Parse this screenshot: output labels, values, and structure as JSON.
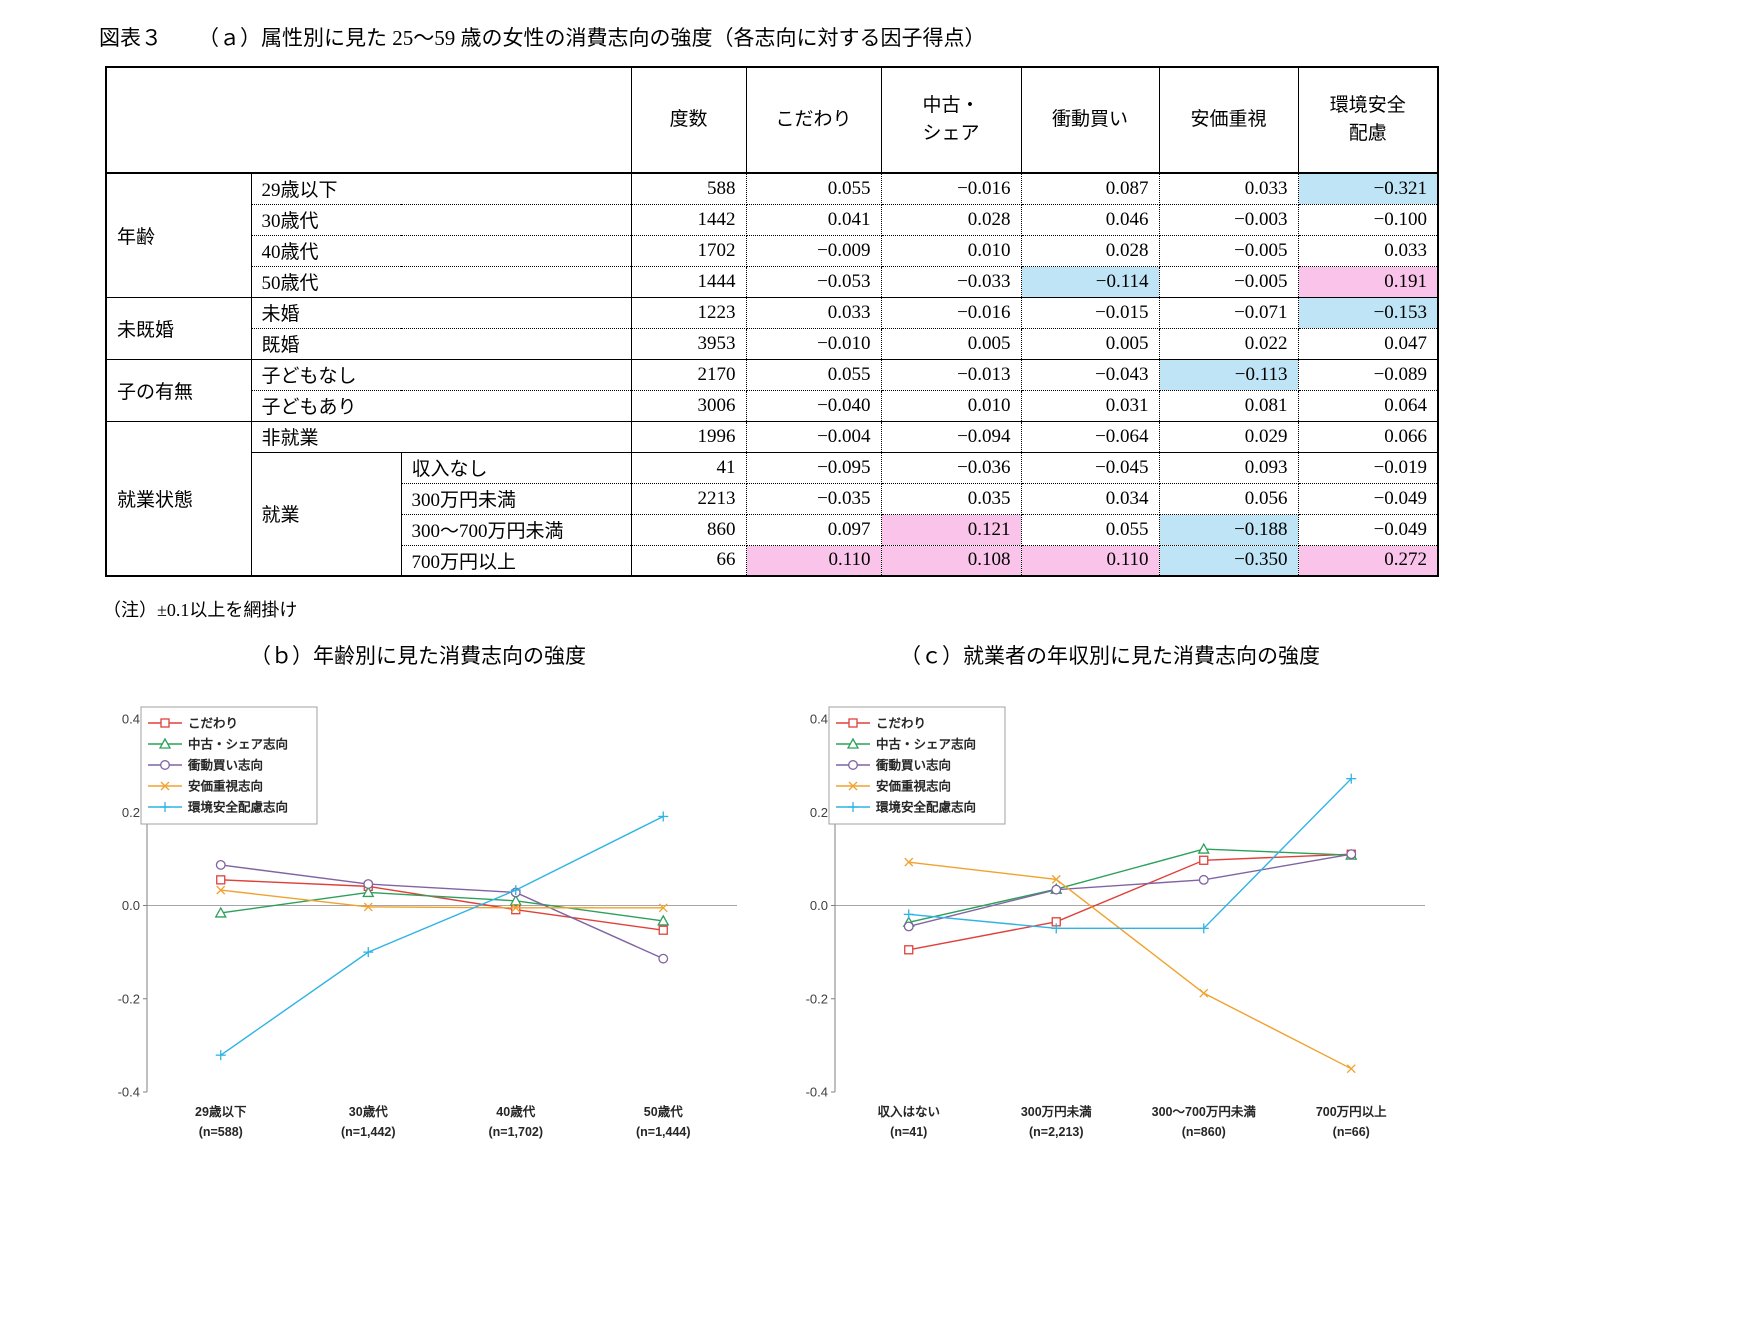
{
  "title": {
    "fig_label": "図表３",
    "fig_caption": "（ａ）属性別に見た 25～59 歳の女性の消費志向の強度（各志向に対する因子得点）"
  },
  "note": "（注）±0.1以上を網掛け",
  "colors": {
    "highlight_blue": "#bfe4f5",
    "highlight_pink": "#f9c3ea"
  },
  "table": {
    "groups": {
      "age": "年齢",
      "marital": "未既婚",
      "children": "子の有無",
      "employment": "就業状態",
      "employed": "就業"
    },
    "col_headers": [
      "度数",
      "こだわり",
      "中古・\nシェア",
      "衝動買い",
      "安価重視",
      "環境安全\n配慮"
    ],
    "rows": [
      {
        "label": "29歳以下",
        "values": [
          "588",
          "0.055",
          "−0.016",
          "0.087",
          "0.033",
          "−0.321"
        ],
        "hl": [
          "",
          "",
          "",
          "",
          "",
          "blue"
        ]
      },
      {
        "label": "30歳代",
        "values": [
          "1442",
          "0.041",
          "0.028",
          "0.046",
          "−0.003",
          "−0.100"
        ],
        "hl": [
          "",
          "",
          "",
          "",
          "",
          ""
        ]
      },
      {
        "label": "40歳代",
        "values": [
          "1702",
          "−0.009",
          "0.010",
          "0.028",
          "−0.005",
          "0.033"
        ],
        "hl": [
          "",
          "",
          "",
          "",
          "",
          ""
        ]
      },
      {
        "label": "50歳代",
        "values": [
          "1444",
          "−0.053",
          "−0.033",
          "−0.114",
          "−0.005",
          "0.191"
        ],
        "hl": [
          "",
          "",
          "",
          "blue",
          "",
          "pink"
        ]
      },
      {
        "label": "未婚",
        "values": [
          "1223",
          "0.033",
          "−0.016",
          "−0.015",
          "−0.071",
          "−0.153"
        ],
        "hl": [
          "",
          "",
          "",
          "",
          "",
          "blue"
        ]
      },
      {
        "label": "既婚",
        "values": [
          "3953",
          "−0.010",
          "0.005",
          "0.005",
          "0.022",
          "0.047"
        ],
        "hl": [
          "",
          "",
          "",
          "",
          "",
          ""
        ]
      },
      {
        "label": "子どもなし",
        "values": [
          "2170",
          "0.055",
          "−0.013",
          "−0.043",
          "−0.113",
          "−0.089"
        ],
        "hl": [
          "",
          "",
          "",
          "",
          "blue",
          ""
        ]
      },
      {
        "label": "子どもあり",
        "values": [
          "3006",
          "−0.040",
          "0.010",
          "0.031",
          "0.081",
          "0.064"
        ],
        "hl": [
          "",
          "",
          "",
          "",
          "",
          ""
        ]
      },
      {
        "label": "非就業",
        "values": [
          "1996",
          "−0.004",
          "−0.094",
          "−0.064",
          "0.029",
          "0.066"
        ],
        "hl": [
          "",
          "",
          "",
          "",
          "",
          ""
        ]
      },
      {
        "label": "収入なし",
        "values": [
          "41",
          "−0.095",
          "−0.036",
          "−0.045",
          "0.093",
          "−0.019"
        ],
        "hl": [
          "",
          "",
          "",
          "",
          "",
          ""
        ]
      },
      {
        "label": "300万円未満",
        "values": [
          "2213",
          "−0.035",
          "0.035",
          "0.034",
          "0.056",
          "−0.049"
        ],
        "hl": [
          "",
          "",
          "",
          "",
          "",
          ""
        ]
      },
      {
        "label": "300～700万円未満",
        "values": [
          "860",
          "0.097",
          "0.121",
          "0.055",
          "−0.188",
          "−0.049"
        ],
        "hl": [
          "",
          "",
          "pink",
          "",
          "blue",
          ""
        ]
      },
      {
        "label": "700万円以上",
        "values": [
          "66",
          "0.110",
          "0.108",
          "0.110",
          "−0.350",
          "0.272"
        ],
        "hl": [
          "",
          "pink",
          "pink",
          "pink",
          "blue",
          "pink"
        ]
      }
    ]
  },
  "chart_data": [
    {
      "type": "line",
      "title": "（ｂ）年齢別に見た消費志向の強度",
      "categories": [
        "29歳以下",
        "30歳代",
        "40歳代",
        "50歳代"
      ],
      "category_counts": [
        "(n=588)",
        "(n=1,442)",
        "(n=1,702)",
        "(n=1,444)"
      ],
      "ylim": [
        -0.4,
        0.4
      ],
      "yticks": [
        0.4,
        0.2,
        0,
        -0.2,
        -0.4
      ],
      "grid": "zero-line-only",
      "legend_position": "top-left",
      "series": [
        {
          "name": "こだわり",
          "marker": "square",
          "color": "#e0403a",
          "values": [
            0.055,
            0.041,
            -0.009,
            -0.053
          ]
        },
        {
          "name": "中古・シェア志向",
          "marker": "triangle",
          "color": "#2ca05a",
          "values": [
            -0.016,
            0.028,
            0.01,
            -0.033
          ]
        },
        {
          "name": "衝動買い志向",
          "marker": "circle",
          "color": "#8064a2",
          "values": [
            0.087,
            0.046,
            0.028,
            -0.114
          ]
        },
        {
          "name": "安価重視志向",
          "marker": "x",
          "color": "#f0a22e",
          "values": [
            0.033,
            -0.003,
            -0.005,
            -0.005
          ]
        },
        {
          "name": "環境安全配慮志向",
          "marker": "plus",
          "color": "#2eb3e4",
          "values": [
            -0.321,
            -0.1,
            0.033,
            0.191
          ]
        }
      ]
    },
    {
      "type": "line",
      "title": "（ｃ）就業者の年収別に見た消費志向の強度",
      "categories": [
        "収入はない",
        "300万円未満",
        "300～700万円未満",
        "700万円以上"
      ],
      "category_counts": [
        "(n=41)",
        "(n=2,213)",
        "(n=860)",
        "(n=66)"
      ],
      "ylim": [
        -0.4,
        0.4
      ],
      "yticks": [
        0.4,
        0.2,
        0,
        -0.2,
        -0.4
      ],
      "grid": "zero-line-only",
      "legend_position": "top-left",
      "series": [
        {
          "name": "こだわり",
          "marker": "square",
          "color": "#e0403a",
          "values": [
            -0.095,
            -0.035,
            0.097,
            0.11
          ]
        },
        {
          "name": "中古・シェア志向",
          "marker": "triangle",
          "color": "#2ca05a",
          "values": [
            -0.036,
            0.035,
            0.121,
            0.108
          ]
        },
        {
          "name": "衝動買い志向",
          "marker": "circle",
          "color": "#8064a2",
          "values": [
            -0.045,
            0.034,
            0.055,
            0.11
          ]
        },
        {
          "name": "安価重視志向",
          "marker": "x",
          "color": "#f0a22e",
          "values": [
            0.093,
            0.056,
            -0.188,
            -0.35
          ]
        },
        {
          "name": "環境安全配慮志向",
          "marker": "plus",
          "color": "#2eb3e4",
          "values": [
            -0.019,
            -0.049,
            -0.049,
            0.272
          ]
        }
      ]
    }
  ]
}
